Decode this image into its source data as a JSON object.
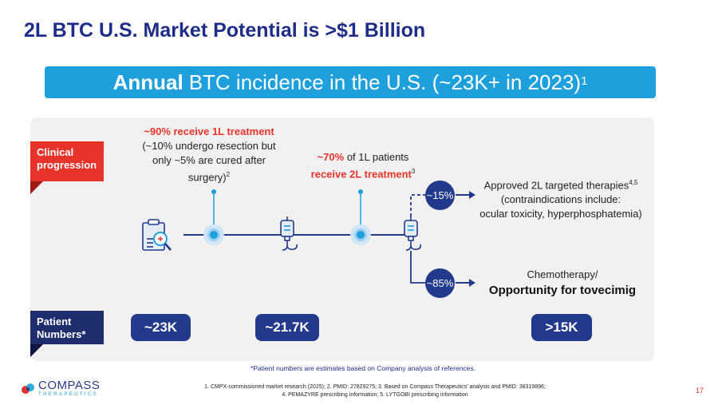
{
  "title": "2L BTC U.S. Market Potential is >$1 Billion",
  "banner": {
    "bold": "Annual",
    "rest": "BTC incidence in the U.S. (~23K+ in 2023)",
    "sup": "1"
  },
  "tags": {
    "clinical": [
      "Clinical",
      "progression"
    ],
    "patient": [
      "Patient",
      "Numbers*"
    ]
  },
  "step1": {
    "headline": "~90% receive 1L treatment",
    "detail": [
      "(~10% undergo resection but",
      "only ~5% are cured after",
      "surgery)"
    ],
    "sup": "2"
  },
  "step2": {
    "pct": "~70%",
    "text1": " of 1L patients",
    "text2": "receive 2L treatment",
    "sup": "3"
  },
  "branch_top": {
    "pct": "~15%",
    "line1": "Approved 2L targeted therapies",
    "sup": "4,5",
    "line2": "(contraindications include:",
    "line3": "ocular toxicity, hyperphosphatemia)"
  },
  "branch_bottom": {
    "pct": "~85%",
    "line1": "Chemotherapy/",
    "line2": "Opportunity for tovecimig"
  },
  "numbers": {
    "n1": "~23K",
    "n2": "~21.7K",
    "n3": ">15K"
  },
  "footnote": "*Patient numbers are estimates based on Company analysis of references.",
  "references": [
    "1. CMPX-commissioned market research (2025); 2. PMID: 27829275;  3. Based on Compass Therapeutics' analysis and PMID: 38319896;",
    "4. PEMAZYRE prescribing information;  5. LYTGOBI prescribing information"
  ],
  "logo": {
    "name": "COMPASS",
    "sub": "THERAPEUTICS"
  },
  "page_number": "17",
  "colors": {
    "navy": "#1f2d8a",
    "banner_blue": "#1ea0dd",
    "red": "#e8332a",
    "pill": "#233a8c"
  }
}
